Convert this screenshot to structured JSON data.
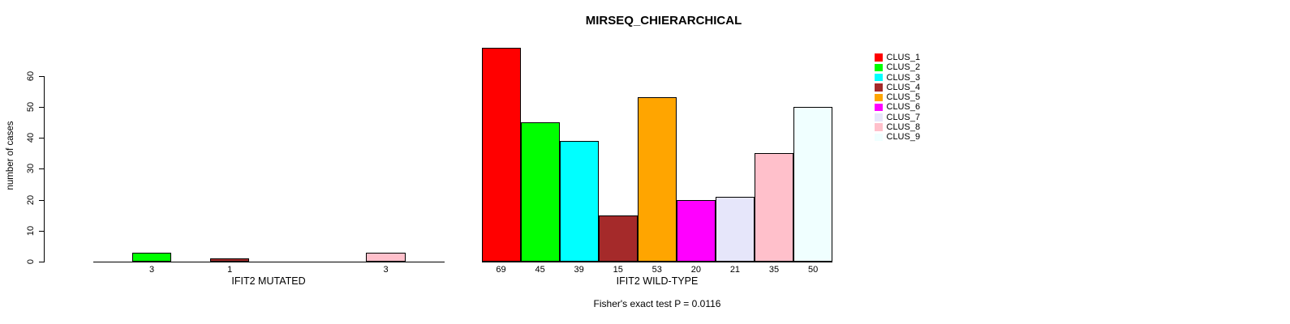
{
  "title": "MIRSEQ_CHIERARCHICAL",
  "chart_data": {
    "type": "bar",
    "title": "MIRSEQ_CHIERARCHICAL",
    "ylabel": "number of cases",
    "ylim": [
      0,
      60
    ],
    "y_ticks": [
      0,
      10,
      20,
      30,
      40,
      50,
      60
    ],
    "grid": false,
    "legend_position": "top-right",
    "clusters": [
      "CLUS_1",
      "CLUS_2",
      "CLUS_3",
      "CLUS_4",
      "CLUS_5",
      "CLUS_6",
      "CLUS_7",
      "CLUS_8",
      "CLUS_9"
    ],
    "colors": [
      "#FF0000",
      "#00FF00",
      "#00FFFF",
      "#A52A2A",
      "#FFA500",
      "#FF00FF",
      "#E6E6FA",
      "#FFC0CB",
      "#F0FFFF"
    ],
    "groups": [
      {
        "label": "IFIT2 MUTATED",
        "values": [
          0,
          3,
          0,
          1,
          0,
          0,
          0,
          3,
          0
        ]
      },
      {
        "label": "IFIT2 WILD-TYPE",
        "values": [
          69,
          45,
          39,
          15,
          53,
          20,
          21,
          35,
          50
        ]
      }
    ],
    "annotation": "Fisher's exact test P = 0.0116"
  }
}
